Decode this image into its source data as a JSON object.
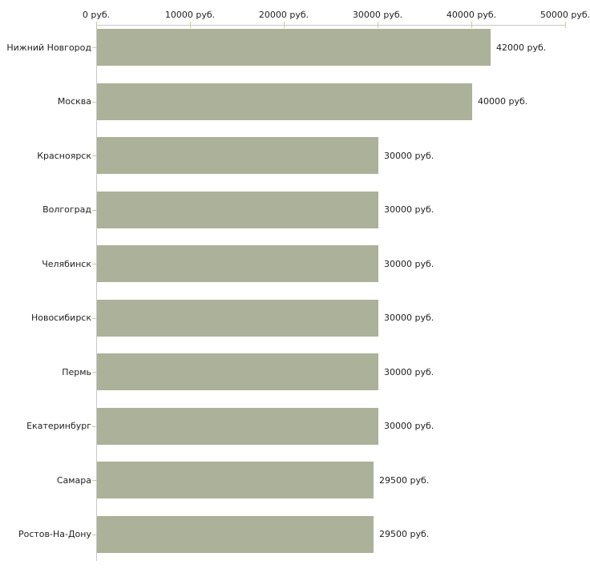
{
  "chart_data": {
    "type": "bar",
    "orientation": "horizontal",
    "title": "",
    "xlabel": "",
    "ylabel": "",
    "categories": [
      "Нижний Новгород",
      "Москва",
      "Красноярск",
      "Волгоград",
      "Челябинск",
      "Новосибирск",
      "Пермь",
      "Екатеринбург",
      "Самара",
      "Ростов-На-Дону"
    ],
    "values": [
      42000,
      40000,
      30000,
      30000,
      30000,
      30000,
      30000,
      30000,
      29500,
      29500
    ],
    "value_labels": [
      "42000 руб.",
      "40000 руб.",
      "30000 руб.",
      "30000 руб.",
      "30000 руб.",
      "30000 руб.",
      "30000 руб.",
      "30000 руб.",
      "29500 руб.",
      "29500 руб."
    ],
    "x_tick_labels": [
      "0 руб.",
      "10000 руб.",
      "20000 руб.",
      "30000 руб.",
      "40000 руб.",
      "50000 руб."
    ],
    "x_tick_values": [
      0,
      10000,
      20000,
      30000,
      40000,
      50000
    ],
    "xlim": [
      0,
      50000
    ],
    "unit": "руб.",
    "grid": false,
    "legend": "none",
    "colors": {
      "bar": "#acb199",
      "axis_line": "#c8c8c8",
      "tick_mark": "#c6cc99",
      "text": "#222222",
      "background": "#ffffff"
    }
  }
}
